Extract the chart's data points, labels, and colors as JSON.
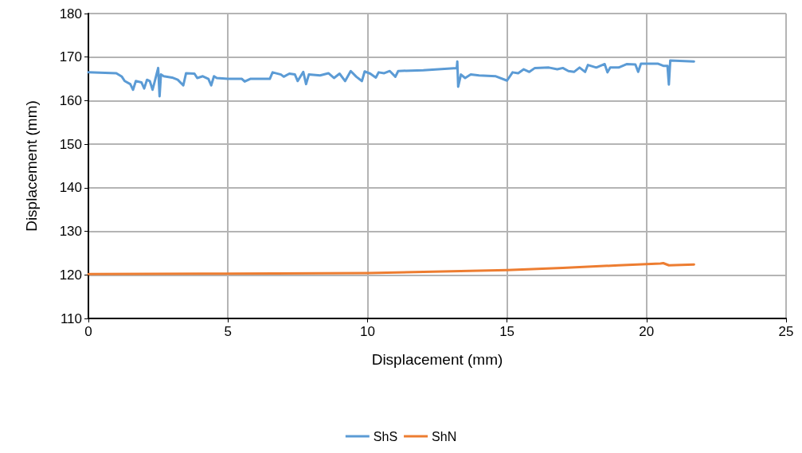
{
  "chart_data": {
    "type": "line",
    "xlabel": "Displacement (mm)",
    "ylabel": "Displacement (mm)",
    "xlim": [
      0,
      25
    ],
    "xticks": [
      0,
      5,
      10,
      15,
      20,
      25
    ],
    "ylim": [
      110,
      180
    ],
    "yticks": [
      110,
      120,
      130,
      140,
      150,
      160,
      170,
      180
    ],
    "grid": true,
    "legend": "bottom",
    "marker": "none",
    "line_style": "solid",
    "series": [
      {
        "name": "ShS",
        "color": "#5b9bd5",
        "x": [
          0,
          1.0,
          1.2,
          1.3,
          1.5,
          1.6,
          1.7,
          1.9,
          2.0,
          2.1,
          2.2,
          2.3,
          2.4,
          2.5,
          2.55,
          2.6,
          2.7,
          3.0,
          3.2,
          3.4,
          3.5,
          3.8,
          3.9,
          4.1,
          4.3,
          4.4,
          4.5,
          4.6,
          5.0,
          5.5,
          5.6,
          5.8,
          6.5,
          6.6,
          6.9,
          7.0,
          7.2,
          7.4,
          7.5,
          7.7,
          7.8,
          7.9,
          8.3,
          8.6,
          8.8,
          9.0,
          9.2,
          9.4,
          9.6,
          9.8,
          9.9,
          10.1,
          10.3,
          10.4,
          10.6,
          10.8,
          11.0,
          11.1,
          12.0,
          13.2,
          13.22,
          13.25,
          13.35,
          13.5,
          13.7,
          14.0,
          14.6,
          15.0,
          15.2,
          15.4,
          15.6,
          15.8,
          16.0,
          16.5,
          16.8,
          17.0,
          17.2,
          17.4,
          17.6,
          17.8,
          17.9,
          18.2,
          18.5,
          18.6,
          18.7,
          19.0,
          19.3,
          19.6,
          19.7,
          19.8,
          20.4,
          20.6,
          20.75,
          20.8,
          20.85,
          21.7
        ],
        "values": [
          166.5,
          166.3,
          165.5,
          164.5,
          163.8,
          162.5,
          164.5,
          164.2,
          162.8,
          164.8,
          164.5,
          162.5,
          165,
          167.5,
          161,
          166,
          165.6,
          165.3,
          164.8,
          163.5,
          166.3,
          166.2,
          165.2,
          165.6,
          165,
          163.5,
          165.6,
          165.2,
          165,
          165,
          164.4,
          165,
          165,
          166.5,
          166,
          165.5,
          166.2,
          166,
          164.5,
          166.6,
          163.8,
          166,
          165.8,
          166.3,
          165.2,
          166.2,
          164.5,
          166.8,
          165.5,
          164.5,
          166.7,
          166.2,
          165.3,
          166.5,
          166.3,
          166.8,
          165.5,
          166.8,
          167,
          167.5,
          169,
          163.2,
          166,
          165.2,
          166,
          165.8,
          165.6,
          164.6,
          166.5,
          166.3,
          167.2,
          166.6,
          167.5,
          167.6,
          167.2,
          167.5,
          166.8,
          166.6,
          167.6,
          166.6,
          168.2,
          167.6,
          168.4,
          166.5,
          167.6,
          167.6,
          168.4,
          168.3,
          166.6,
          168.5,
          168.5,
          168,
          168,
          163.7,
          169.2,
          169
        ]
      },
      {
        "name": "ShN",
        "color": "#ed7d31",
        "x": [
          0,
          5,
          10,
          12,
          15,
          17,
          19,
          20.5,
          20.6,
          20.8,
          21.7
        ],
        "values": [
          120.2,
          120.3,
          120.4,
          120.7,
          121.1,
          121.6,
          122.2,
          122.6,
          122.7,
          122.2,
          122.4
        ]
      }
    ]
  }
}
